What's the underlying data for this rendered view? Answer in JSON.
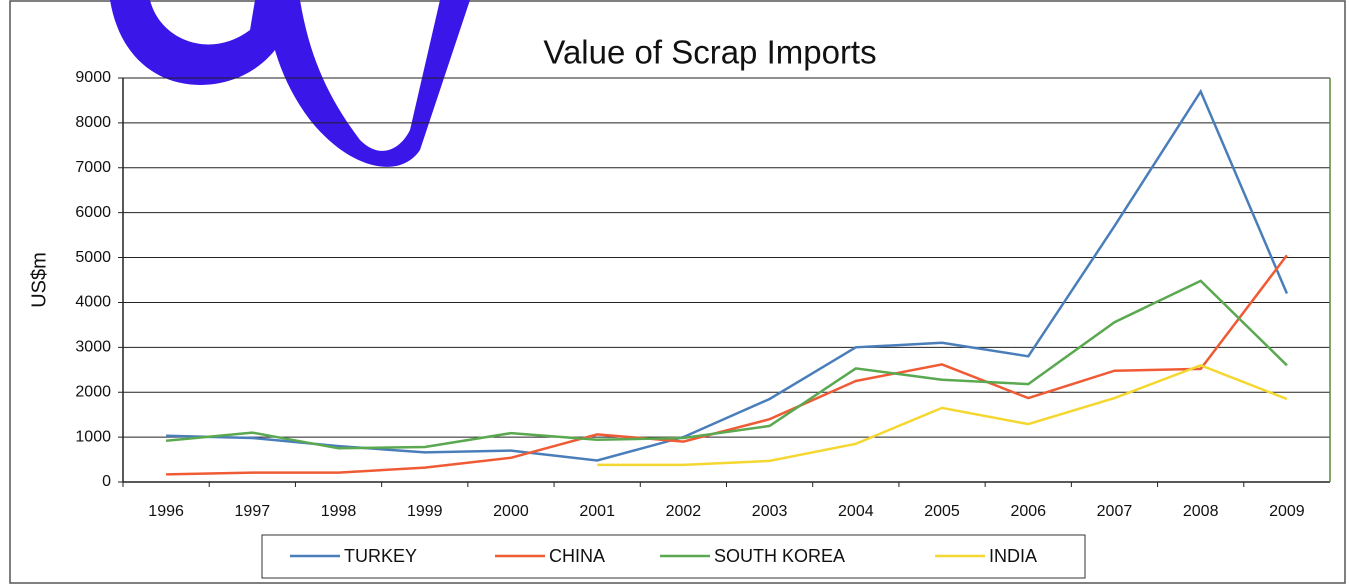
{
  "chart_data": {
    "type": "line",
    "title": "Value of Scrap Imports",
    "y_label": "US$m",
    "categories": [
      "1996",
      "1997",
      "1998",
      "1999",
      "2000",
      "2001",
      "2002",
      "2003",
      "2004",
      "2005",
      "2006",
      "2007",
      "2008",
      "2009"
    ],
    "series": [
      {
        "name": "TURKEY",
        "color": "#4a7ebb",
        "values": [
          1030,
          980,
          800,
          660,
          700,
          480,
          1000,
          1850,
          3000,
          3100,
          2800,
          5700,
          8700,
          4200
        ]
      },
      {
        "name": "CHINA",
        "color": "#ef5b35",
        "values": [
          170,
          210,
          210,
          320,
          540,
          1060,
          900,
          1400,
          2250,
          2620,
          1870,
          2480,
          2520,
          5050
        ]
      },
      {
        "name": "SOUTH KOREA",
        "color": "#5aa84f",
        "values": [
          920,
          1100,
          750,
          780,
          1090,
          940,
          980,
          1250,
          2530,
          2280,
          2180,
          3560,
          4480,
          2600
        ]
      },
      {
        "name": "INDIA",
        "color": "#f5d731",
        "values": [
          null,
          null,
          null,
          null,
          null,
          380,
          380,
          470,
          850,
          1650,
          1290,
          1870,
          2600,
          1850
        ]
      }
    ],
    "ylim": [
      0,
      9000
    ],
    "yticks": [
      0,
      1000,
      2000,
      3000,
      4000,
      5000,
      6000,
      7000,
      8000,
      9000
    ],
    "grid": true,
    "legend": "bottom"
  }
}
